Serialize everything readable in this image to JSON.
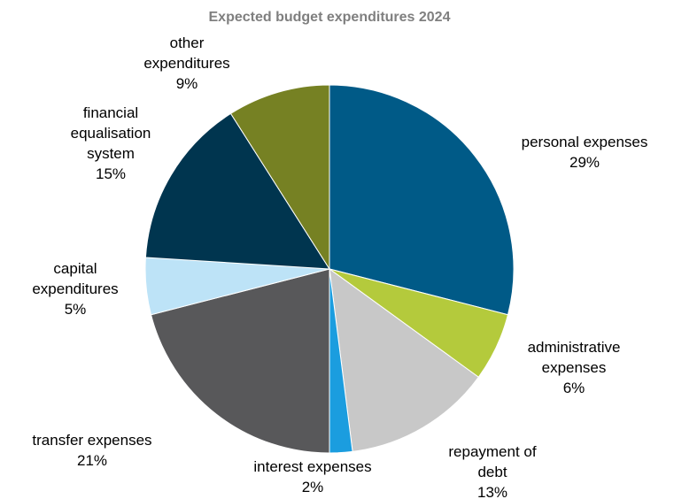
{
  "chart_data": {
    "type": "pie",
    "title": "Expected budget expenditures 2024",
    "slices": [
      {
        "label": "personal expenses",
        "value": 29,
        "value_label": "29%",
        "color": "#005a87"
      },
      {
        "label": "administrative expenses",
        "value": 6,
        "value_label": "6%",
        "color": "#b4ca3c"
      },
      {
        "label": "repayment of debt",
        "value": 13,
        "value_label": "13%",
        "color": "#c8c8c8"
      },
      {
        "label": "interest expenses",
        "value": 2,
        "value_label": "2%",
        "color": "#1b9ddf"
      },
      {
        "label": "transfer expenses",
        "value": 21,
        "value_label": "21%",
        "color": "#58585a"
      },
      {
        "label": "capital expenditures",
        "value": 5,
        "value_label": "5%",
        "color": "#bde3f7"
      },
      {
        "label": "financial equalisation system",
        "value": 15,
        "value_label": "15%",
        "color": "#00354f"
      },
      {
        "label": "other expenditures",
        "value": 9,
        "value_label": "9%",
        "color": "#768123"
      }
    ],
    "start_direction": "top",
    "direction": "clockwise",
    "legend": "none"
  }
}
